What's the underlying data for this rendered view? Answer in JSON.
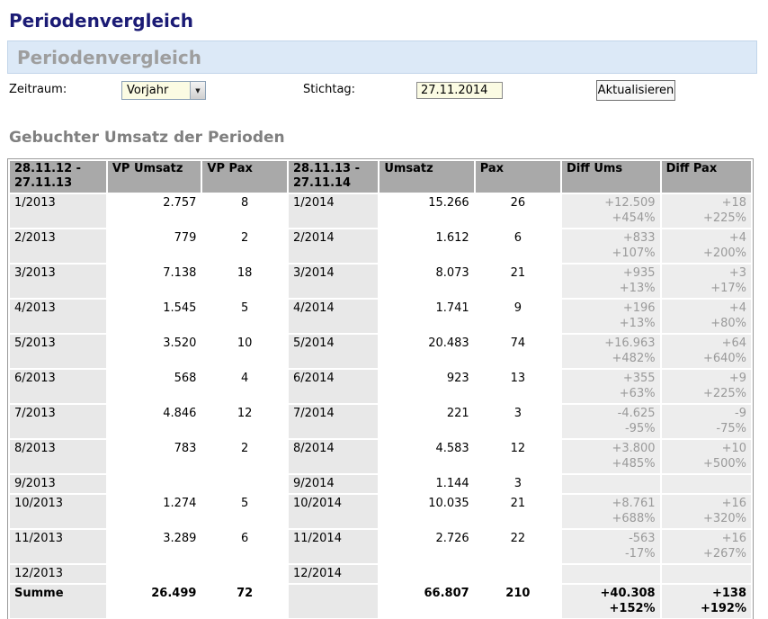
{
  "page": {
    "title": "Periodenvergleich"
  },
  "panel": {
    "title": "Periodenvergleich"
  },
  "controls": {
    "zeitraum_label": "Zeitraum:",
    "zeitraum_value": "Vorjahr",
    "dropdown_icon": "chevron-down-icon",
    "stichtag_label": "Stichtag:",
    "stichtag_value": "27.11.2014",
    "refresh_label": "Aktualisieren"
  },
  "section": {
    "heading": "Gebuchter Umsatz der Perioden"
  },
  "colors": {
    "title_navy": "#1b1b75",
    "panel_blue": "#dce9f7",
    "header_gray": "#a9a9a9",
    "period_cell_gray": "#e8e8e8",
    "diff_cell_gray": "#ededed",
    "diff_text_gray": "#9a9a9a",
    "field_cream": "#fbfbe3"
  },
  "table": {
    "headers": [
      "28.11.12 - 27.11.13",
      "VP Umsatz",
      "VP Pax",
      "28.11.13 - 27.11.14",
      "Umsatz",
      "Pax",
      "Diff Ums",
      "Diff Pax"
    ],
    "rows": [
      {
        "period_prev": "1/2013",
        "vp_umsatz": "2.757",
        "vp_pax": "8",
        "period_curr": "1/2014",
        "umsatz": "15.266",
        "pax": "26",
        "diff_ums": [
          "+12.509",
          "+454%"
        ],
        "diff_pax": [
          "+18",
          "+225%"
        ]
      },
      {
        "period_prev": "2/2013",
        "vp_umsatz": "779",
        "vp_pax": "2",
        "period_curr": "2/2014",
        "umsatz": "1.612",
        "pax": "6",
        "diff_ums": [
          "+833",
          "+107%"
        ],
        "diff_pax": [
          "+4",
          "+200%"
        ]
      },
      {
        "period_prev": "3/2013",
        "vp_umsatz": "7.138",
        "vp_pax": "18",
        "period_curr": "3/2014",
        "umsatz": "8.073",
        "pax": "21",
        "diff_ums": [
          "+935",
          "+13%"
        ],
        "diff_pax": [
          "+3",
          "+17%"
        ]
      },
      {
        "period_prev": "4/2013",
        "vp_umsatz": "1.545",
        "vp_pax": "5",
        "period_curr": "4/2014",
        "umsatz": "1.741",
        "pax": "9",
        "diff_ums": [
          "+196",
          "+13%"
        ],
        "diff_pax": [
          "+4",
          "+80%"
        ]
      },
      {
        "period_prev": "5/2013",
        "vp_umsatz": "3.520",
        "vp_pax": "10",
        "period_curr": "5/2014",
        "umsatz": "20.483",
        "pax": "74",
        "diff_ums": [
          "+16.963",
          "+482%"
        ],
        "diff_pax": [
          "+64",
          "+640%"
        ]
      },
      {
        "period_prev": "6/2013",
        "vp_umsatz": "568",
        "vp_pax": "4",
        "period_curr": "6/2014",
        "umsatz": "923",
        "pax": "13",
        "diff_ums": [
          "+355",
          "+63%"
        ],
        "diff_pax": [
          "+9",
          "+225%"
        ]
      },
      {
        "period_prev": "7/2013",
        "vp_umsatz": "4.846",
        "vp_pax": "12",
        "period_curr": "7/2014",
        "umsatz": "221",
        "pax": "3",
        "diff_ums": [
          "-4.625",
          "-95%"
        ],
        "diff_pax": [
          "-9",
          "-75%"
        ]
      },
      {
        "period_prev": "8/2013",
        "vp_umsatz": "783",
        "vp_pax": "2",
        "period_curr": "8/2014",
        "umsatz": "4.583",
        "pax": "12",
        "diff_ums": [
          "+3.800",
          "+485%"
        ],
        "diff_pax": [
          "+10",
          "+500%"
        ]
      },
      {
        "period_prev": "9/2013",
        "vp_umsatz": "",
        "vp_pax": "",
        "period_curr": "9/2014",
        "umsatz": "1.144",
        "pax": "3",
        "diff_ums": [
          "",
          ""
        ],
        "diff_pax": [
          "",
          ""
        ]
      },
      {
        "period_prev": "10/2013",
        "vp_umsatz": "1.274",
        "vp_pax": "5",
        "period_curr": "10/2014",
        "umsatz": "10.035",
        "pax": "21",
        "diff_ums": [
          "+8.761",
          "+688%"
        ],
        "diff_pax": [
          "+16",
          "+320%"
        ]
      },
      {
        "period_prev": "11/2013",
        "vp_umsatz": "3.289",
        "vp_pax": "6",
        "period_curr": "11/2014",
        "umsatz": "2.726",
        "pax": "22",
        "diff_ums": [
          "-563",
          "-17%"
        ],
        "diff_pax": [
          "+16",
          "+267%"
        ]
      },
      {
        "period_prev": "12/2013",
        "vp_umsatz": "",
        "vp_pax": "",
        "period_curr": "12/2014",
        "umsatz": "",
        "pax": "",
        "diff_ums": [
          "",
          ""
        ],
        "diff_pax": [
          "",
          ""
        ]
      }
    ],
    "total": {
      "label": "Summe",
      "vp_umsatz": "26.499",
      "vp_pax": "72",
      "period": "",
      "umsatz": "66.807",
      "pax": "210",
      "diff_ums": [
        "+40.308",
        "+152%"
      ],
      "diff_pax": [
        "+138",
        "+192%"
      ]
    }
  }
}
